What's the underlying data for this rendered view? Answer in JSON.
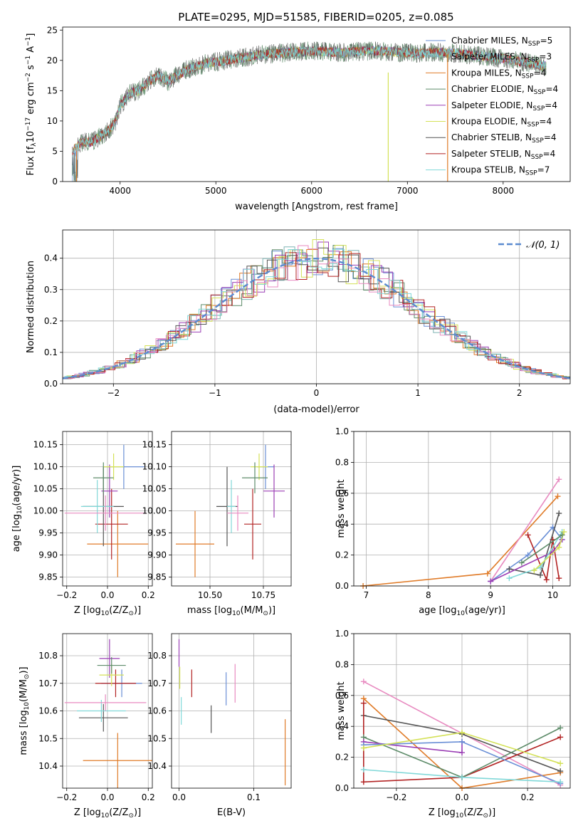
{
  "figure_title": "PLATE=0295, MJD=51585, FIBERID=0205, z=0.085",
  "legend_panel1": [
    {
      "label": "Chabrier MILES, N",
      "sub": "SSP",
      "post": "=5",
      "color": "#6a8fd6"
    },
    {
      "label": "Salpeter MILES, N",
      "sub": "SSP",
      "post": "=3",
      "color": "#7fb3b3"
    },
    {
      "label": "Kroupa MILES, N",
      "sub": "SSP",
      "post": "=4",
      "color": "#e07b28"
    },
    {
      "label": "Chabrier ELODIE, N",
      "sub": "SSP",
      "post": "=4",
      "color": "#5e8c6a"
    },
    {
      "label": "Salpeter ELODIE, N",
      "sub": "SSP",
      "post": "=4",
      "color": "#9b3fb5"
    },
    {
      "label": "Kroupa ELODIE, N",
      "sub": "SSP",
      "post": "=4",
      "color": "#d4e157"
    },
    {
      "label": "Chabrier STELIB, N",
      "sub": "SSP",
      "post": "=4",
      "color": "#555555"
    },
    {
      "label": "Salpeter STELIB, N",
      "sub": "SSP",
      "post": "=4",
      "color": "#b22222"
    },
    {
      "label": "Kroupa STELIB, N",
      "sub": "SSP",
      "post": "=7",
      "color": "#80d8d8"
    }
  ],
  "legend_panel2": {
    "label": "𝒩(0, 1)",
    "color": "#5b8bd0"
  },
  "chart_data": [
    {
      "type": "line",
      "title": "PLATE=0295, MJD=51585, FIBERID=0205, z=0.085",
      "xlabel": "wavelength [Angstrom, rest frame]",
      "ylabel_parts": [
        "Flux [f",
        "λ",
        "10",
        "−17",
        " erg cm",
        "−2",
        " s",
        "−1",
        " A",
        "−1",
        "]"
      ],
      "xlim": [
        3400,
        8700
      ],
      "ylim": [
        0,
        25.5
      ],
      "xticks": [
        4000,
        5000,
        6000,
        7000,
        8000
      ],
      "yticks": [
        0,
        5,
        10,
        15,
        20,
        25
      ],
      "grid": false,
      "spectrum_nodes": {
        "x": [
          3500,
          3600,
          3700,
          3800,
          3900,
          3950,
          4000,
          4100,
          4200,
          4300,
          4400,
          4500,
          4700,
          4900,
          5100,
          5300,
          5500,
          5700,
          5900,
          6100,
          6300,
          6500,
          6700,
          6900,
          7100,
          7300,
          7500,
          7700,
          7900,
          8100,
          8300,
          8450
        ],
        "y": [
          5,
          6.5,
          6.5,
          7.5,
          8.8,
          9.8,
          12.5,
          14.5,
          15,
          16.5,
          17.5,
          16.5,
          18.5,
          19.5,
          20,
          20.5,
          21,
          21.2,
          21.5,
          21.5,
          21.3,
          21.5,
          21.6,
          21.3,
          21.2,
          21.3,
          21.2,
          20.8,
          20.5,
          20,
          19.5,
          19
        ]
      },
      "legend": "right"
    },
    {
      "type": "histogram",
      "xlabel": "(data-model)/error",
      "ylabel": "Normed distribution",
      "xlim": [
        -2.5,
        2.5
      ],
      "ylim": [
        0,
        0.49
      ],
      "xticks": [
        -2,
        -1,
        0,
        1,
        2
      ],
      "yticks": [
        0.0,
        0.1,
        0.2,
        0.3,
        0.4
      ],
      "grid": true,
      "reference_curve": "normal(0,1)",
      "legend": "top-right"
    },
    {
      "type": "scatter",
      "xlabel_parts": [
        "Z [log",
        "10",
        "(Z/Z",
        "⊙",
        ")]"
      ],
      "ylabel_parts": [
        "age  [log",
        "10",
        "(age/yr)]"
      ],
      "xlim": [
        -0.22,
        0.22
      ],
      "ylim": [
        9.83,
        10.18
      ],
      "xticks": [
        -0.2,
        0.0,
        0.2
      ],
      "yticks": [
        9.85,
        9.9,
        9.95,
        10.0,
        10.05,
        10.1,
        10.15
      ],
      "grid": true,
      "points": [
        {
          "color": "#6a8fd6",
          "x": 0.08,
          "xerr": 0.1,
          "y": 10.1,
          "yerr": 0.05
        },
        {
          "color": "#e07b28",
          "x": 0.05,
          "xerr": 0.15,
          "y": 9.925,
          "yerr": 0.075
        },
        {
          "color": "#b22222",
          "x": 0.02,
          "xerr": 0.08,
          "y": 9.97,
          "yerr": 0.08
        },
        {
          "color": "#555555",
          "x": -0.02,
          "xerr": 0.1,
          "y": 10.01,
          "yerr": 0.09
        },
        {
          "color": "#9b3fb5",
          "x": 0.01,
          "xerr": 0.04,
          "y": 10.045,
          "yerr": 0.06
        },
        {
          "color": "#d4e157",
          "x": 0.03,
          "xerr": 0.05,
          "y": 10.1,
          "yerr": 0.03
        },
        {
          "color": "#5e8c6a",
          "x": -0.02,
          "xerr": 0.05,
          "y": 10.075,
          "yerr": 0.035
        },
        {
          "color": "#80d8d8",
          "x": -0.05,
          "xerr": 0.08,
          "y": 10.01,
          "yerr": 0.06
        },
        {
          "color": "#e88ac0",
          "x": -0.01,
          "xerr": 0.2,
          "y": 9.995,
          "yerr": 0.04
        }
      ]
    },
    {
      "type": "scatter",
      "xlabel_parts": [
        "mass [log",
        "10",
        "(M/M",
        "⊙",
        ")]"
      ],
      "ylabel_parts": [
        "",
        "",
        ""
      ],
      "xlim": [
        10.32,
        10.88
      ],
      "ylim": [
        9.83,
        10.18
      ],
      "xticks": [
        10.5,
        10.75
      ],
      "ytick_labels_from": 2,
      "grid": true,
      "points": [
        {
          "color": "#6a8fd6",
          "x": 10.76,
          "xerr": 0.04,
          "y": 10.1,
          "yerr": 0.05
        },
        {
          "color": "#e07b28",
          "x": 10.43,
          "xerr": 0.09,
          "y": 9.925,
          "yerr": 0.075
        },
        {
          "color": "#b22222",
          "x": 10.7,
          "xerr": 0.04,
          "y": 9.97,
          "yerr": 0.08
        },
        {
          "color": "#555555",
          "x": 10.58,
          "xerr": 0.05,
          "y": 10.01,
          "yerr": 0.09
        },
        {
          "color": "#9b3fb5",
          "x": 10.8,
          "xerr": 0.05,
          "y": 10.045,
          "yerr": 0.06
        },
        {
          "color": "#d4e157",
          "x": 10.73,
          "xerr": 0.04,
          "y": 10.1,
          "yerr": 0.03
        },
        {
          "color": "#5e8c6a",
          "x": 10.71,
          "xerr": 0.06,
          "y": 10.075,
          "yerr": 0.035
        },
        {
          "color": "#80d8d8",
          "x": 10.6,
          "xerr": 0.02,
          "y": 10.01,
          "yerr": 0.06
        },
        {
          "color": "#e88ac0",
          "x": 10.63,
          "xerr": 0.05,
          "y": 9.995,
          "yerr": 0.04
        }
      ]
    },
    {
      "type": "line",
      "xlabel_parts": [
        "age  [log",
        "10",
        "(age/yr)]"
      ],
      "ylabel": "mass weight",
      "xlim": [
        6.8,
        10.28
      ],
      "ylim": [
        0,
        1.0
      ],
      "xticks": [
        7,
        8,
        9,
        10
      ],
      "yticks": [
        0.0,
        0.2,
        0.4,
        0.6,
        0.8,
        1.0
      ],
      "grid": true,
      "series": [
        {
          "color": "#e07b28",
          "x": [
            6.95,
            8.95,
            10.08
          ],
          "y": [
            0.0,
            0.08,
            0.58
          ]
        },
        {
          "color": "#e88ac0",
          "x": [
            9.0,
            10.1
          ],
          "y": [
            0.03,
            0.69
          ]
        },
        {
          "color": "#6a8fd6",
          "x": [
            9.0,
            9.6,
            10.0,
            10.15
          ],
          "y": [
            0.03,
            0.2,
            0.38,
            0.3
          ]
        },
        {
          "color": "#b22222",
          "x": [
            9.6,
            9.9,
            10.0,
            10.1
          ],
          "y": [
            0.33,
            0.04,
            0.3,
            0.05
          ]
        },
        {
          "color": "#555555",
          "x": [
            9.3,
            9.8,
            10.1
          ],
          "y": [
            0.11,
            0.07,
            0.47
          ]
        },
        {
          "color": "#9b3fb5",
          "x": [
            9.0,
            10.0,
            10.15
          ],
          "y": [
            0.03,
            0.22,
            0.3
          ]
        },
        {
          "color": "#80d8d8",
          "x": [
            9.3,
            9.8,
            10.15
          ],
          "y": [
            0.05,
            0.12,
            0.35
          ]
        },
        {
          "color": "#d4e157",
          "x": [
            9.7,
            10.1,
            10.18
          ],
          "y": [
            0.1,
            0.25,
            0.35
          ]
        },
        {
          "color": "#5e8c6a",
          "x": [
            9.5,
            10.15
          ],
          "y": [
            0.15,
            0.33
          ]
        }
      ]
    },
    {
      "type": "scatter",
      "xlabel_parts": [
        "Z [log",
        "10",
        "(Z/Z",
        "⊙",
        ")]"
      ],
      "ylabel_parts": [
        "mass [log",
        "10",
        "(M/M",
        "⊙",
        ")]"
      ],
      "xlim": [
        -0.22,
        0.22
      ],
      "ylim": [
        10.32,
        10.88
      ],
      "xticks": [
        -0.2,
        0.0,
        0.2
      ],
      "yticks": [
        10.4,
        10.5,
        10.6,
        10.7,
        10.8
      ],
      "grid": true,
      "points": [
        {
          "color": "#6a8fd6",
          "x": 0.07,
          "xerr": 0.1,
          "y": 10.7,
          "yerr": 0.05
        },
        {
          "color": "#e07b28",
          "x": 0.05,
          "xerr": 0.17,
          "y": 10.42,
          "yerr": 0.1
        },
        {
          "color": "#b22222",
          "x": 0.04,
          "xerr": 0.1,
          "y": 10.7,
          "yerr": 0.05
        },
        {
          "color": "#555555",
          "x": -0.02,
          "xerr": 0.12,
          "y": 10.575,
          "yerr": 0.05
        },
        {
          "color": "#9b3fb5",
          "x": 0.01,
          "xerr": 0.05,
          "y": 10.79,
          "yerr": 0.07
        },
        {
          "color": "#d4e157",
          "x": 0.02,
          "xerr": 0.06,
          "y": 10.73,
          "yerr": 0.04
        },
        {
          "color": "#5e8c6a",
          "x": 0.02,
          "xerr": 0.07,
          "y": 10.765,
          "yerr": 0.03
        },
        {
          "color": "#80d8d8",
          "x": -0.03,
          "xerr": 0.12,
          "y": 10.6,
          "yerr": 0.04
        },
        {
          "color": "#e88ac0",
          "x": -0.01,
          "xerr": 0.2,
          "y": 10.63,
          "yerr": 0.03
        }
      ]
    },
    {
      "type": "scatter",
      "xlabel": "E(B-V)",
      "ylabel": "",
      "xlim": [
        -0.01,
        0.15
      ],
      "ylim": [
        10.32,
        10.88
      ],
      "xticks": [
        0.0,
        0.1
      ],
      "yticks": [
        10.4,
        10.5,
        10.6,
        10.7,
        10.8
      ],
      "grid": true,
      "points": [
        {
          "color": "#6a8fd6",
          "x": 0.063,
          "xerr": 0,
          "y": 10.68,
          "yerr": 0.06
        },
        {
          "color": "#e07b28",
          "x": 0.142,
          "xerr": 0,
          "y": 10.45,
          "yerr": 0.12
        },
        {
          "color": "#b22222",
          "x": 0.017,
          "xerr": 0,
          "y": 10.7,
          "yerr": 0.05
        },
        {
          "color": "#555555",
          "x": 0.043,
          "xerr": 0,
          "y": 10.57,
          "yerr": 0.05
        },
        {
          "color": "#9b3fb5",
          "x": 0.0,
          "xerr": 0,
          "y": 10.81,
          "yerr": 0.05
        },
        {
          "color": "#d4e157",
          "x": 0.001,
          "xerr": 0,
          "y": 10.72,
          "yerr": 0.04
        },
        {
          "color": "#80d8d8",
          "x": 0.003,
          "xerr": 0,
          "y": 10.6,
          "yerr": 0.05
        },
        {
          "color": "#e88ac0",
          "x": 0.075,
          "xerr": 0,
          "y": 10.7,
          "yerr": 0.07
        }
      ]
    },
    {
      "type": "line",
      "xlabel_parts": [
        "Z [log",
        "10",
        "(Z/Z",
        "⊙",
        ")]"
      ],
      "ylabel": "mass weight",
      "xlim": [
        -0.33,
        0.33
      ],
      "ylim": [
        0,
        1.0
      ],
      "xticks": [
        -0.2,
        0.0,
        0.2
      ],
      "yticks": [
        0.0,
        0.2,
        0.4,
        0.6,
        0.8,
        1.0
      ],
      "grid": true,
      "series": [
        {
          "color": "#e88ac0",
          "x": [
            -0.3,
            0.3
          ],
          "y": [
            0.69,
            0.02
          ]
        },
        {
          "color": "#e07b28",
          "x": [
            -0.3,
            0.0,
            0.3
          ],
          "y": [
            0.58,
            0.0,
            0.1
          ]
        },
        {
          "color": "#555555",
          "x": [
            -0.3,
            0.0,
            0.3
          ],
          "y": [
            0.47,
            0.35,
            0.11
          ]
        },
        {
          "color": "#b22222",
          "x": [
            -0.3,
            -0.3,
            0.0,
            0.3
          ],
          "y": [
            0.55,
            0.04,
            0.07,
            0.33
          ]
        },
        {
          "color": "#5e8c6a",
          "x": [
            -0.3,
            0.0,
            0.3
          ],
          "y": [
            0.33,
            0.07,
            0.39
          ]
        },
        {
          "color": "#9b3fb5",
          "x": [
            -0.3,
            0.0,
            0.0
          ],
          "y": [
            0.3,
            0.23,
            0.3
          ]
        },
        {
          "color": "#6a8fd6",
          "x": [
            -0.3,
            0.0,
            0.3
          ],
          "y": [
            0.28,
            0.3,
            0.03
          ]
        },
        {
          "color": "#d4e157",
          "x": [
            -0.3,
            0.0,
            0.3
          ],
          "y": [
            0.26,
            0.36,
            0.16
          ]
        },
        {
          "color": "#80d8d8",
          "x": [
            -0.3,
            0.0,
            0.3
          ],
          "y": [
            0.12,
            0.07,
            0.04
          ]
        }
      ]
    }
  ]
}
